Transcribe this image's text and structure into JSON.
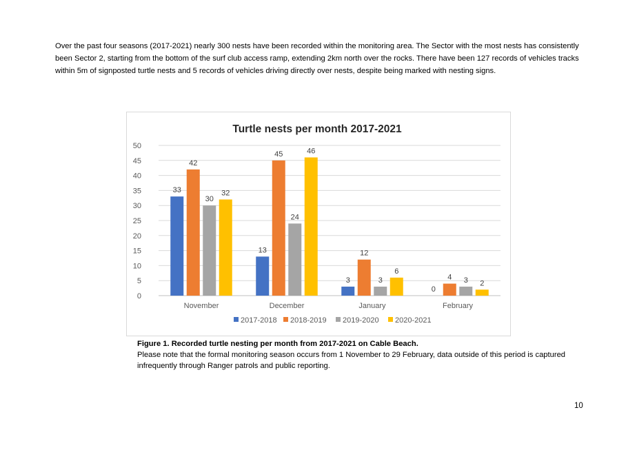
{
  "document": {
    "intro_paragraph": "Over the past four seasons (2017-2021) nearly 300 nests have been recorded within the monitoring area. The Sector with the most nests has consistently been Sector 2, starting from the bottom of the surf club access ramp, extending 2km north over the rocks.  There have been 127 records of vehicles tracks within 5m of signposted turtle nests and 5 records of vehicles driving directly over nests, despite being marked with nesting signs.",
    "figure_caption_title": "Figure 1. Recorded turtle nesting per month from 2017-2021 on Cable Beach.",
    "figure_caption_note": "Please note that the formal monitoring season occurs from 1 November to 29 February, data outside of this period is captured infrequently through Ranger patrols and public reporting.",
    "page_number": "10"
  },
  "chart_data": {
    "type": "bar",
    "title": "Turtle nests per month 2017-2021",
    "categories": [
      "November",
      "December",
      "January",
      "February"
    ],
    "series": [
      {
        "name": "2017-2018",
        "color": "#4472C4",
        "values": [
          33,
          13,
          3,
          0
        ]
      },
      {
        "name": "2018-2019",
        "color": "#ED7D31",
        "values": [
          42,
          45,
          12,
          4
        ]
      },
      {
        "name": "2019-2020",
        "color": "#A5A5A5",
        "values": [
          30,
          24,
          3,
          3
        ]
      },
      {
        "name": "2020-2021",
        "color": "#FFC000",
        "values": [
          32,
          46,
          6,
          2
        ]
      }
    ],
    "ylim": [
      0,
      50
    ],
    "yticks": [
      0,
      5,
      10,
      15,
      20,
      25,
      30,
      35,
      40,
      45,
      50
    ],
    "xlabel": "",
    "ylabel": "",
    "grid": true,
    "legend": "bottom",
    "data_labels": true
  }
}
